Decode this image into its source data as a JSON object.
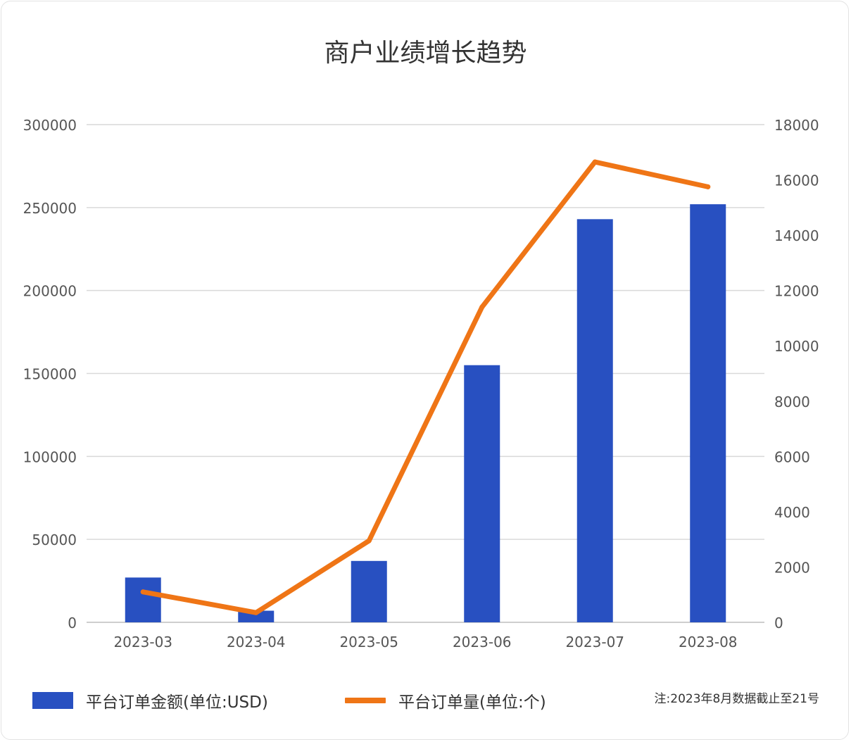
{
  "chart_data": {
    "type": "bar",
    "title": "商户业绩增长趋势",
    "categories": [
      "2023-03",
      "2023-04",
      "2023-05",
      "2023-06",
      "2023-07",
      "2023-08"
    ],
    "series": [
      {
        "name": "平台订单金额(单位:USD)",
        "type": "bar",
        "axis": "left",
        "color": "#2850c1",
        "values": [
          27000,
          7000,
          37000,
          155000,
          243000,
          252000
        ]
      },
      {
        "name": "平台订单量(单位:个)",
        "type": "line",
        "axis": "right",
        "color": "#ef7516",
        "values": [
          1100,
          350,
          2950,
          11400,
          16650,
          15750
        ]
      }
    ],
    "y_left": {
      "ylim": [
        0,
        300000
      ],
      "ticks": [
        "0",
        "50000",
        "100000",
        "150000",
        "200000",
        "250000",
        "300000"
      ]
    },
    "y_right": {
      "ylim": [
        0,
        18000
      ],
      "ticks": [
        "0",
        "2000",
        "4000",
        "6000",
        "8000",
        "10000",
        "12000",
        "14000",
        "16000",
        "18000"
      ]
    },
    "grid": true,
    "legend": "bottom",
    "note": "注:2023年8月数据截止至21号"
  }
}
